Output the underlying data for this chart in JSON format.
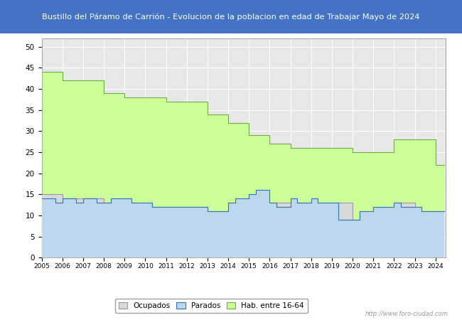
{
  "title": "Bustillo del Páramo de Carrión - Evolucion de la poblacion en edad de Trabajar Mayo de 2024",
  "title_color": "#ffffff",
  "title_bg_color": "#4472c4",
  "watermark": "http://www.foro-ciudad.com",
  "legend_labels": [
    "Ocupados",
    "Parados",
    "Hab. entre 16-64"
  ],
  "ylim": [
    0,
    52
  ],
  "yticks": [
    0,
    5,
    10,
    15,
    20,
    25,
    30,
    35,
    40,
    45,
    50
  ],
  "plot_bg_color": "#e8e8e8",
  "grid_color": "#ffffff",
  "hab_x": [
    2005,
    2006,
    2006,
    2007,
    2007,
    2008,
    2008,
    2009,
    2009,
    2010,
    2010,
    2011,
    2011,
    2012,
    2012,
    2013,
    2013,
    2014,
    2014,
    2015,
    2015,
    2016,
    2016,
    2017,
    2017,
    2018,
    2018,
    2019,
    2019,
    2020,
    2020,
    2021,
    2021,
    2022,
    2022,
    2023,
    2023,
    2024,
    2024.42
  ],
  "hab_y": [
    44,
    44,
    42,
    42,
    42,
    39,
    39,
    38,
    38,
    38,
    38,
    37,
    37,
    37,
    37,
    34,
    34,
    32,
    32,
    29,
    29,
    27,
    27,
    26,
    26,
    26,
    26,
    26,
    26,
    25,
    25,
    25,
    25,
    28,
    28,
    28,
    28,
    22,
    22
  ],
  "ocu_x": [
    2005,
    2006,
    2006,
    2007,
    2007,
    2008,
    2008,
    2009,
    2009,
    2010,
    2010,
    2011,
    2011,
    2012,
    2012,
    2013,
    2013,
    2014,
    2014,
    2015,
    2015,
    2016,
    2016,
    2017,
    2017,
    2018,
    2018,
    2019,
    2019,
    2020,
    2020,
    2021,
    2021,
    2022,
    2022,
    2023,
    2023,
    2024,
    2024.42
  ],
  "ocu_y": [
    15,
    15,
    14,
    14,
    14,
    13,
    13,
    13,
    13,
    12,
    12,
    12,
    12,
    12,
    12,
    11,
    11,
    11,
    11,
    11,
    11,
    13,
    13,
    13,
    13,
    13,
    13,
    13,
    13,
    9,
    9,
    11,
    11,
    13,
    13,
    11,
    11,
    11,
    11
  ],
  "par_x": [
    2005,
    2005.33,
    2005.67,
    2006,
    2006.33,
    2006.67,
    2007,
    2007.33,
    2007.67,
    2008,
    2008.33,
    2008.67,
    2009,
    2009.33,
    2009.67,
    2010,
    2010.33,
    2010.67,
    2011,
    2011.33,
    2011.67,
    2012,
    2012.33,
    2012.67,
    2013,
    2013.33,
    2013.67,
    2014,
    2014.33,
    2014.67,
    2015,
    2015.33,
    2015.67,
    2016,
    2016.33,
    2016.67,
    2017,
    2017.33,
    2017.67,
    2018,
    2018.33,
    2018.67,
    2019,
    2019.33,
    2019.67,
    2020,
    2020.33,
    2020.67,
    2021,
    2021.33,
    2021.67,
    2022,
    2022.33,
    2022.67,
    2023,
    2023.33,
    2023.67,
    2024,
    2024.42
  ],
  "par_y": [
    14,
    14,
    13,
    14,
    14,
    13,
    14,
    14,
    13,
    13,
    14,
    14,
    14,
    13,
    13,
    13,
    12,
    12,
    12,
    12,
    12,
    12,
    12,
    12,
    11,
    11,
    11,
    13,
    14,
    14,
    15,
    16,
    16,
    13,
    12,
    12,
    14,
    13,
    13,
    14,
    13,
    13,
    13,
    9,
    9,
    9,
    11,
    11,
    12,
    12,
    12,
    13,
    12,
    12,
    12,
    11,
    11,
    11,
    11
  ]
}
